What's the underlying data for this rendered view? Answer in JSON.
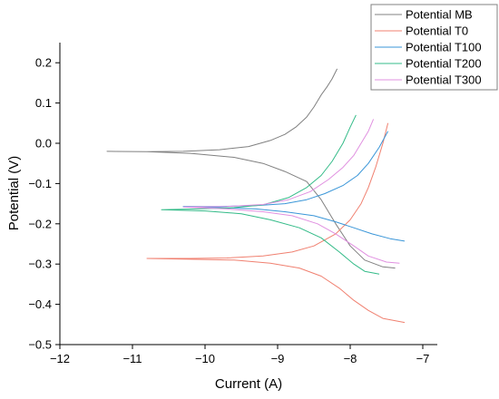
{
  "chart_data": {
    "type": "line",
    "xlabel": "Current (A)",
    "ylabel": "Potential (V)",
    "xlim": [
      -12,
      -6.8
    ],
    "ylim": [
      -0.5,
      0.25
    ],
    "xticks": [
      -12,
      -11,
      -10,
      -9,
      -8,
      -7
    ],
    "yticks": [
      -0.5,
      -0.4,
      -0.3,
      -0.2,
      -0.1,
      0.0,
      0.1,
      0.2
    ],
    "xtick_labels": [
      "−12",
      "−11",
      "−10",
      "−9",
      "−8",
      "−7"
    ],
    "ytick_labels": [
      "−0.5",
      "−0.4",
      "−0.3",
      "−0.2",
      "−0.1",
      "0.0",
      "0.1",
      "0.2"
    ],
    "grid": false,
    "legend_position": "top-right",
    "series": [
      {
        "name": "Potential MB",
        "color": "#808080",
        "values": [
          [
            -8.18,
            0.185
          ],
          [
            -8.25,
            0.16
          ],
          [
            -8.32,
            0.14
          ],
          [
            -8.4,
            0.12
          ],
          [
            -8.5,
            0.09
          ],
          [
            -8.6,
            0.065
          ],
          [
            -8.75,
            0.04
          ],
          [
            -8.9,
            0.022
          ],
          [
            -9.1,
            0.007
          ],
          [
            -9.4,
            -0.008
          ],
          [
            -9.8,
            -0.016
          ],
          [
            -10.3,
            -0.02
          ],
          [
            -10.8,
            -0.021
          ],
          [
            -11.35,
            -0.02
          ],
          [
            -10.8,
            -0.021
          ],
          [
            -10.2,
            -0.025
          ],
          [
            -9.6,
            -0.035
          ],
          [
            -9.2,
            -0.05
          ],
          [
            -8.9,
            -0.07
          ],
          [
            -8.6,
            -0.095
          ],
          [
            -8.4,
            -0.14
          ],
          [
            -8.2,
            -0.2
          ],
          [
            -8.0,
            -0.255
          ],
          [
            -7.8,
            -0.29
          ],
          [
            -7.55,
            -0.307
          ],
          [
            -7.38,
            -0.31
          ]
        ]
      },
      {
        "name": "Potential T0",
        "color": "#f08070",
        "values": [
          [
            -7.48,
            0.05
          ],
          [
            -7.55,
            0.0
          ],
          [
            -7.65,
            -0.06
          ],
          [
            -7.75,
            -0.11
          ],
          [
            -7.85,
            -0.15
          ],
          [
            -8.0,
            -0.19
          ],
          [
            -8.2,
            -0.225
          ],
          [
            -8.5,
            -0.255
          ],
          [
            -8.8,
            -0.27
          ],
          [
            -9.2,
            -0.28
          ],
          [
            -9.7,
            -0.285
          ],
          [
            -10.2,
            -0.286
          ],
          [
            -10.8,
            -0.286
          ],
          [
            -10.2,
            -0.288
          ],
          [
            -9.6,
            -0.29
          ],
          [
            -9.1,
            -0.298
          ],
          [
            -8.7,
            -0.31
          ],
          [
            -8.4,
            -0.33
          ],
          [
            -8.15,
            -0.36
          ],
          [
            -7.95,
            -0.39
          ],
          [
            -7.75,
            -0.415
          ],
          [
            -7.55,
            -0.435
          ],
          [
            -7.25,
            -0.445
          ]
        ]
      },
      {
        "name": "Potential T100",
        "color": "#3a96d8",
        "values": [
          [
            -7.48,
            0.03
          ],
          [
            -7.6,
            -0.01
          ],
          [
            -7.75,
            -0.05
          ],
          [
            -7.9,
            -0.08
          ],
          [
            -8.1,
            -0.105
          ],
          [
            -8.35,
            -0.125
          ],
          [
            -8.6,
            -0.14
          ],
          [
            -8.9,
            -0.15
          ],
          [
            -9.3,
            -0.155
          ],
          [
            -9.8,
            -0.157
          ],
          [
            -10.3,
            -0.157
          ],
          [
            -9.8,
            -0.16
          ],
          [
            -9.3,
            -0.163
          ],
          [
            -8.9,
            -0.17
          ],
          [
            -8.5,
            -0.18
          ],
          [
            -8.2,
            -0.195
          ],
          [
            -7.95,
            -0.21
          ],
          [
            -7.7,
            -0.225
          ],
          [
            -7.45,
            -0.237
          ],
          [
            -7.25,
            -0.243
          ]
        ]
      },
      {
        "name": "Potential T200",
        "color": "#33bb88",
        "values": [
          [
            -7.92,
            0.07
          ],
          [
            -8.0,
            0.04
          ],
          [
            -8.1,
            0.0
          ],
          [
            -8.25,
            -0.045
          ],
          [
            -8.4,
            -0.08
          ],
          [
            -8.6,
            -0.11
          ],
          [
            -8.85,
            -0.135
          ],
          [
            -9.2,
            -0.153
          ],
          [
            -9.6,
            -0.16
          ],
          [
            -10.1,
            -0.163
          ],
          [
            -10.6,
            -0.165
          ],
          [
            -10.0,
            -0.168
          ],
          [
            -9.5,
            -0.175
          ],
          [
            -9.1,
            -0.19
          ],
          [
            -8.7,
            -0.21
          ],
          [
            -8.4,
            -0.235
          ],
          [
            -8.15,
            -0.27
          ],
          [
            -7.95,
            -0.3
          ],
          [
            -7.8,
            -0.318
          ],
          [
            -7.6,
            -0.325
          ]
        ]
      },
      {
        "name": "Potential T300",
        "color": "#e090e0",
        "values": [
          [
            -7.68,
            0.06
          ],
          [
            -7.75,
            0.03
          ],
          [
            -7.85,
            0.0
          ],
          [
            -7.95,
            -0.03
          ],
          [
            -8.1,
            -0.06
          ],
          [
            -8.3,
            -0.09
          ],
          [
            -8.55,
            -0.12
          ],
          [
            -8.85,
            -0.14
          ],
          [
            -9.2,
            -0.152
          ],
          [
            -9.7,
            -0.157
          ],
          [
            -10.3,
            -0.158
          ],
          [
            -9.7,
            -0.163
          ],
          [
            -9.2,
            -0.17
          ],
          [
            -8.8,
            -0.18
          ],
          [
            -8.45,
            -0.2
          ],
          [
            -8.2,
            -0.225
          ],
          [
            -7.95,
            -0.255
          ],
          [
            -7.75,
            -0.28
          ],
          [
            -7.5,
            -0.295
          ],
          [
            -7.32,
            -0.298
          ]
        ]
      }
    ]
  }
}
